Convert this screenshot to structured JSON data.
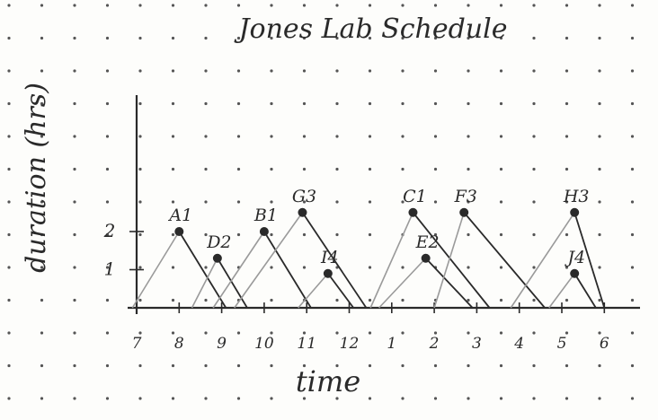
{
  "chart_data": {
    "type": "line",
    "title": "Jones Lab Schedule",
    "xlabel": "time",
    "ylabel": "duration (hrs)",
    "x_ticks": [
      "7",
      "8",
      "9",
      "10",
      "11",
      "12",
      "1",
      "2",
      "3",
      "4",
      "5",
      "6"
    ],
    "y_ticks": [
      "1",
      "2"
    ],
    "xlim": [
      7,
      18
    ],
    "ylim": [
      0,
      3.5
    ],
    "grid": "dot grid paper",
    "series": [
      {
        "name": "A1",
        "peak_time": 8.0,
        "duration": 2,
        "start": 6.9,
        "end": 9.1
      },
      {
        "name": "D2",
        "peak_time": 8.9,
        "duration": 1.3,
        "start": 8.3,
        "end": 9.6
      },
      {
        "name": "B1",
        "peak_time": 10.0,
        "duration": 2,
        "start": 8.8,
        "end": 11.1
      },
      {
        "name": "G3",
        "peak_time": 10.9,
        "duration": 2.5,
        "start": 9.3,
        "end": 12.4
      },
      {
        "name": "I4",
        "peak_time": 11.5,
        "duration": 0.9,
        "start": 10.8,
        "end": 12.1
      },
      {
        "name": "C1",
        "peak_time": 13.5,
        "duration": 2.5,
        "start": 12.5,
        "end": 15.3
      },
      {
        "name": "E2",
        "peak_time": 13.8,
        "duration": 1.3,
        "start": 12.7,
        "end": 14.9
      },
      {
        "name": "F3",
        "peak_time": 14.7,
        "duration": 2.5,
        "start": 14.0,
        "end": 16.6
      },
      {
        "name": "H3",
        "peak_time": 17.3,
        "duration": 2.5,
        "start": 15.8,
        "end": 18.0
      },
      {
        "name": "J4",
        "peak_time": 17.3,
        "duration": 0.9,
        "start": 16.7,
        "end": 17.8
      }
    ]
  },
  "colors": {
    "ink": "#2a2a2a",
    "pencil": "#9a9a9a",
    "grid_dot": "#555555"
  }
}
